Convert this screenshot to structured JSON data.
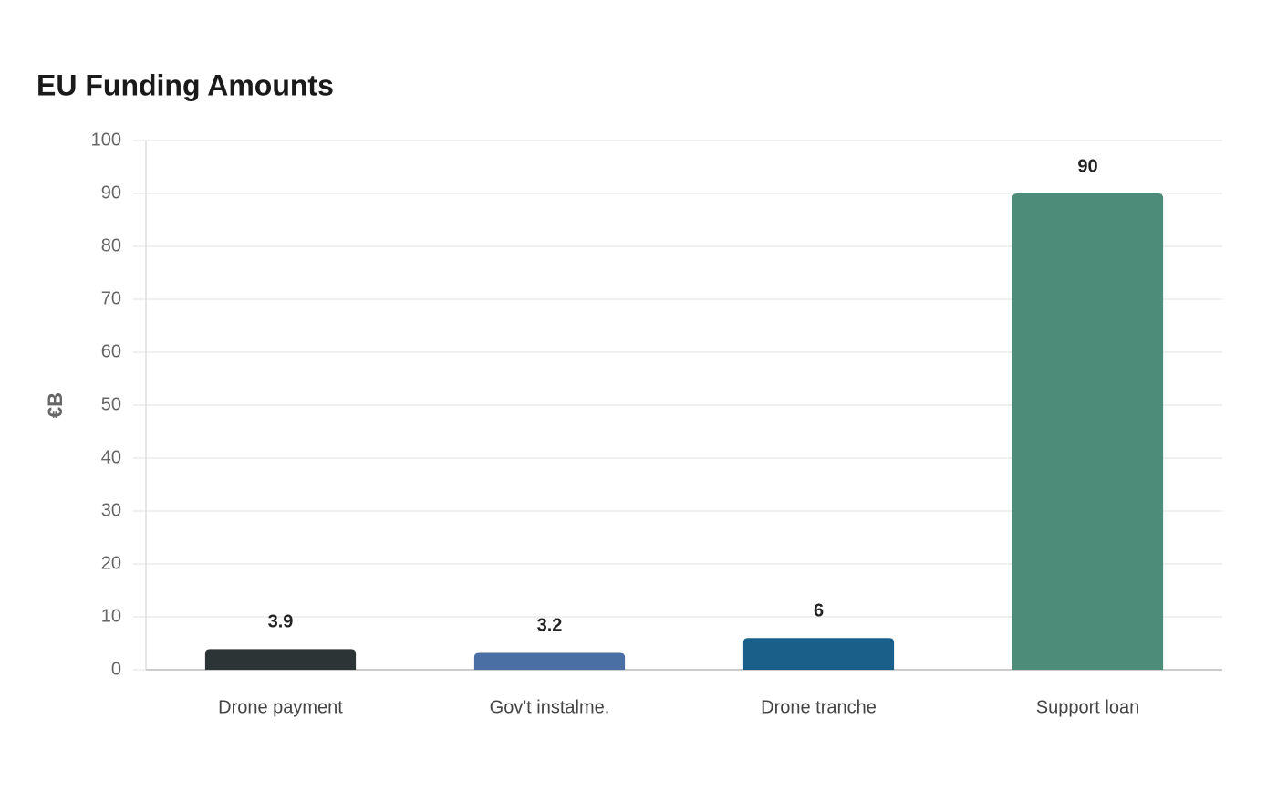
{
  "chart_data": {
    "type": "bar",
    "title": "EU Funding Amounts",
    "y_label": "€B",
    "categories": [
      "Drone payment",
      "Gov't instalme.",
      "Drone tranche",
      "Support loan"
    ],
    "values": [
      3.9,
      3.2,
      6,
      90
    ],
    "colors": [
      "#2d3436",
      "#4a6fa5",
      "#1a5f8a",
      "#4e8c7a"
    ],
    "ylim": [
      0,
      100
    ],
    "yticks": [
      0,
      10,
      20,
      30,
      40,
      50,
      60,
      70,
      80,
      90,
      100
    ],
    "grid": true
  }
}
